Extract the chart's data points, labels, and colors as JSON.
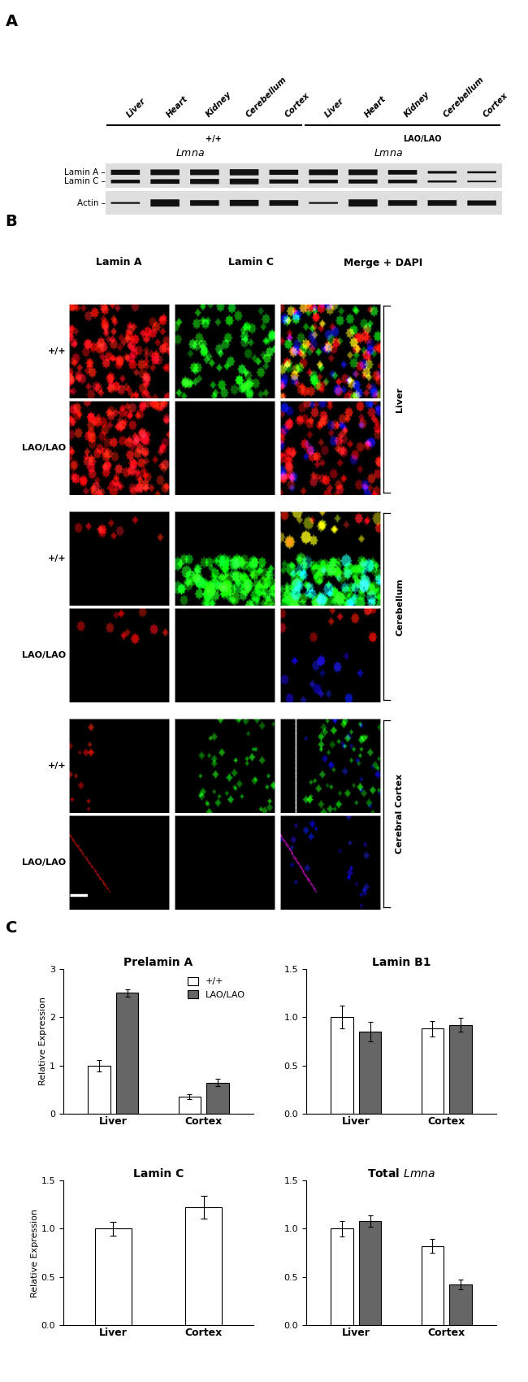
{
  "panel_A": {
    "tissue_labels": [
      "Liver",
      "Heart",
      "Kidney",
      "Cerebellum",
      "Cortex",
      "Liver",
      "Heart",
      "Kidney",
      "Cerebellum",
      "Cortex"
    ],
    "row_labels": [
      "Lamin A –",
      "Lamin C –",
      "Actin –"
    ],
    "laminA_heights": [
      0.09,
      0.1,
      0.1,
      0.11,
      0.09,
      0.1,
      0.1,
      0.08,
      0.04,
      0.03
    ],
    "laminC_heights": [
      0.06,
      0.08,
      0.09,
      0.1,
      0.07,
      0.06,
      0.07,
      0.06,
      0.03,
      0.02
    ],
    "actin_heights": [
      0.025,
      0.13,
      0.1,
      0.11,
      0.1,
      0.025,
      0.13,
      0.1,
      0.1,
      0.09
    ],
    "bg_color": "#e0e0e0"
  },
  "panel_B": {
    "col_labels": [
      "Lamin A",
      "Lamin C",
      "Merge + DAPI"
    ],
    "row_labels": [
      "+/+",
      "LAO/LAO",
      "+/+",
      "LAO/LAO",
      "+/+",
      "LAO/LAO"
    ],
    "side_labels": [
      "Liver",
      "Cerebellum",
      "Cerebral Cortex"
    ]
  },
  "panel_C": {
    "charts": [
      {
        "title": "Prelamin A",
        "title_italic": false,
        "categories": [
          "Liver",
          "Cortex"
        ],
        "values_wt": [
          1.0,
          0.35
        ],
        "values_lao": [
          2.5,
          0.65
        ],
        "errors_wt": [
          0.12,
          0.05
        ],
        "errors_lao": [
          0.08,
          0.07
        ],
        "ylim": [
          0,
          3.0
        ],
        "yticks": [
          0,
          1,
          2,
          3
        ],
        "show_legend": true,
        "wt_only": false
      },
      {
        "title": "Lamin B1",
        "title_italic": false,
        "categories": [
          "Liver",
          "Cortex"
        ],
        "values_wt": [
          1.0,
          0.88
        ],
        "values_lao": [
          0.85,
          0.92
        ],
        "errors_wt": [
          0.12,
          0.08
        ],
        "errors_lao": [
          0.1,
          0.07
        ],
        "ylim": [
          0,
          1.5
        ],
        "yticks": [
          0,
          0.5,
          1.0,
          1.5
        ],
        "show_legend": false,
        "wt_only": false
      },
      {
        "title": "Lamin C",
        "title_italic": false,
        "categories": [
          "Liver",
          "Cortex"
        ],
        "values_wt": [
          1.0,
          1.22
        ],
        "values_lao": [
          0.0,
          0.0
        ],
        "errors_wt": [
          0.07,
          0.12
        ],
        "errors_lao": [
          0.0,
          0.0
        ],
        "ylim": [
          0,
          1.5
        ],
        "yticks": [
          0,
          0.5,
          1.0,
          1.5
        ],
        "show_legend": false,
        "wt_only": true
      },
      {
        "title": "Total Lmna",
        "title_italic": true,
        "categories": [
          "Liver",
          "Cortex"
        ],
        "values_wt": [
          1.0,
          0.82
        ],
        "values_lao": [
          1.08,
          0.42
        ],
        "errors_wt": [
          0.08,
          0.07
        ],
        "errors_lao": [
          0.06,
          0.05
        ],
        "ylim": [
          0,
          1.5
        ],
        "yticks": [
          0,
          0.5,
          1.0,
          1.5
        ],
        "show_legend": false,
        "wt_only": false
      }
    ],
    "bar_color_wt": "#ffffff",
    "bar_color_lao": "#666666",
    "bar_edgecolor": "#000000",
    "ylabel": "Relative Expression"
  }
}
